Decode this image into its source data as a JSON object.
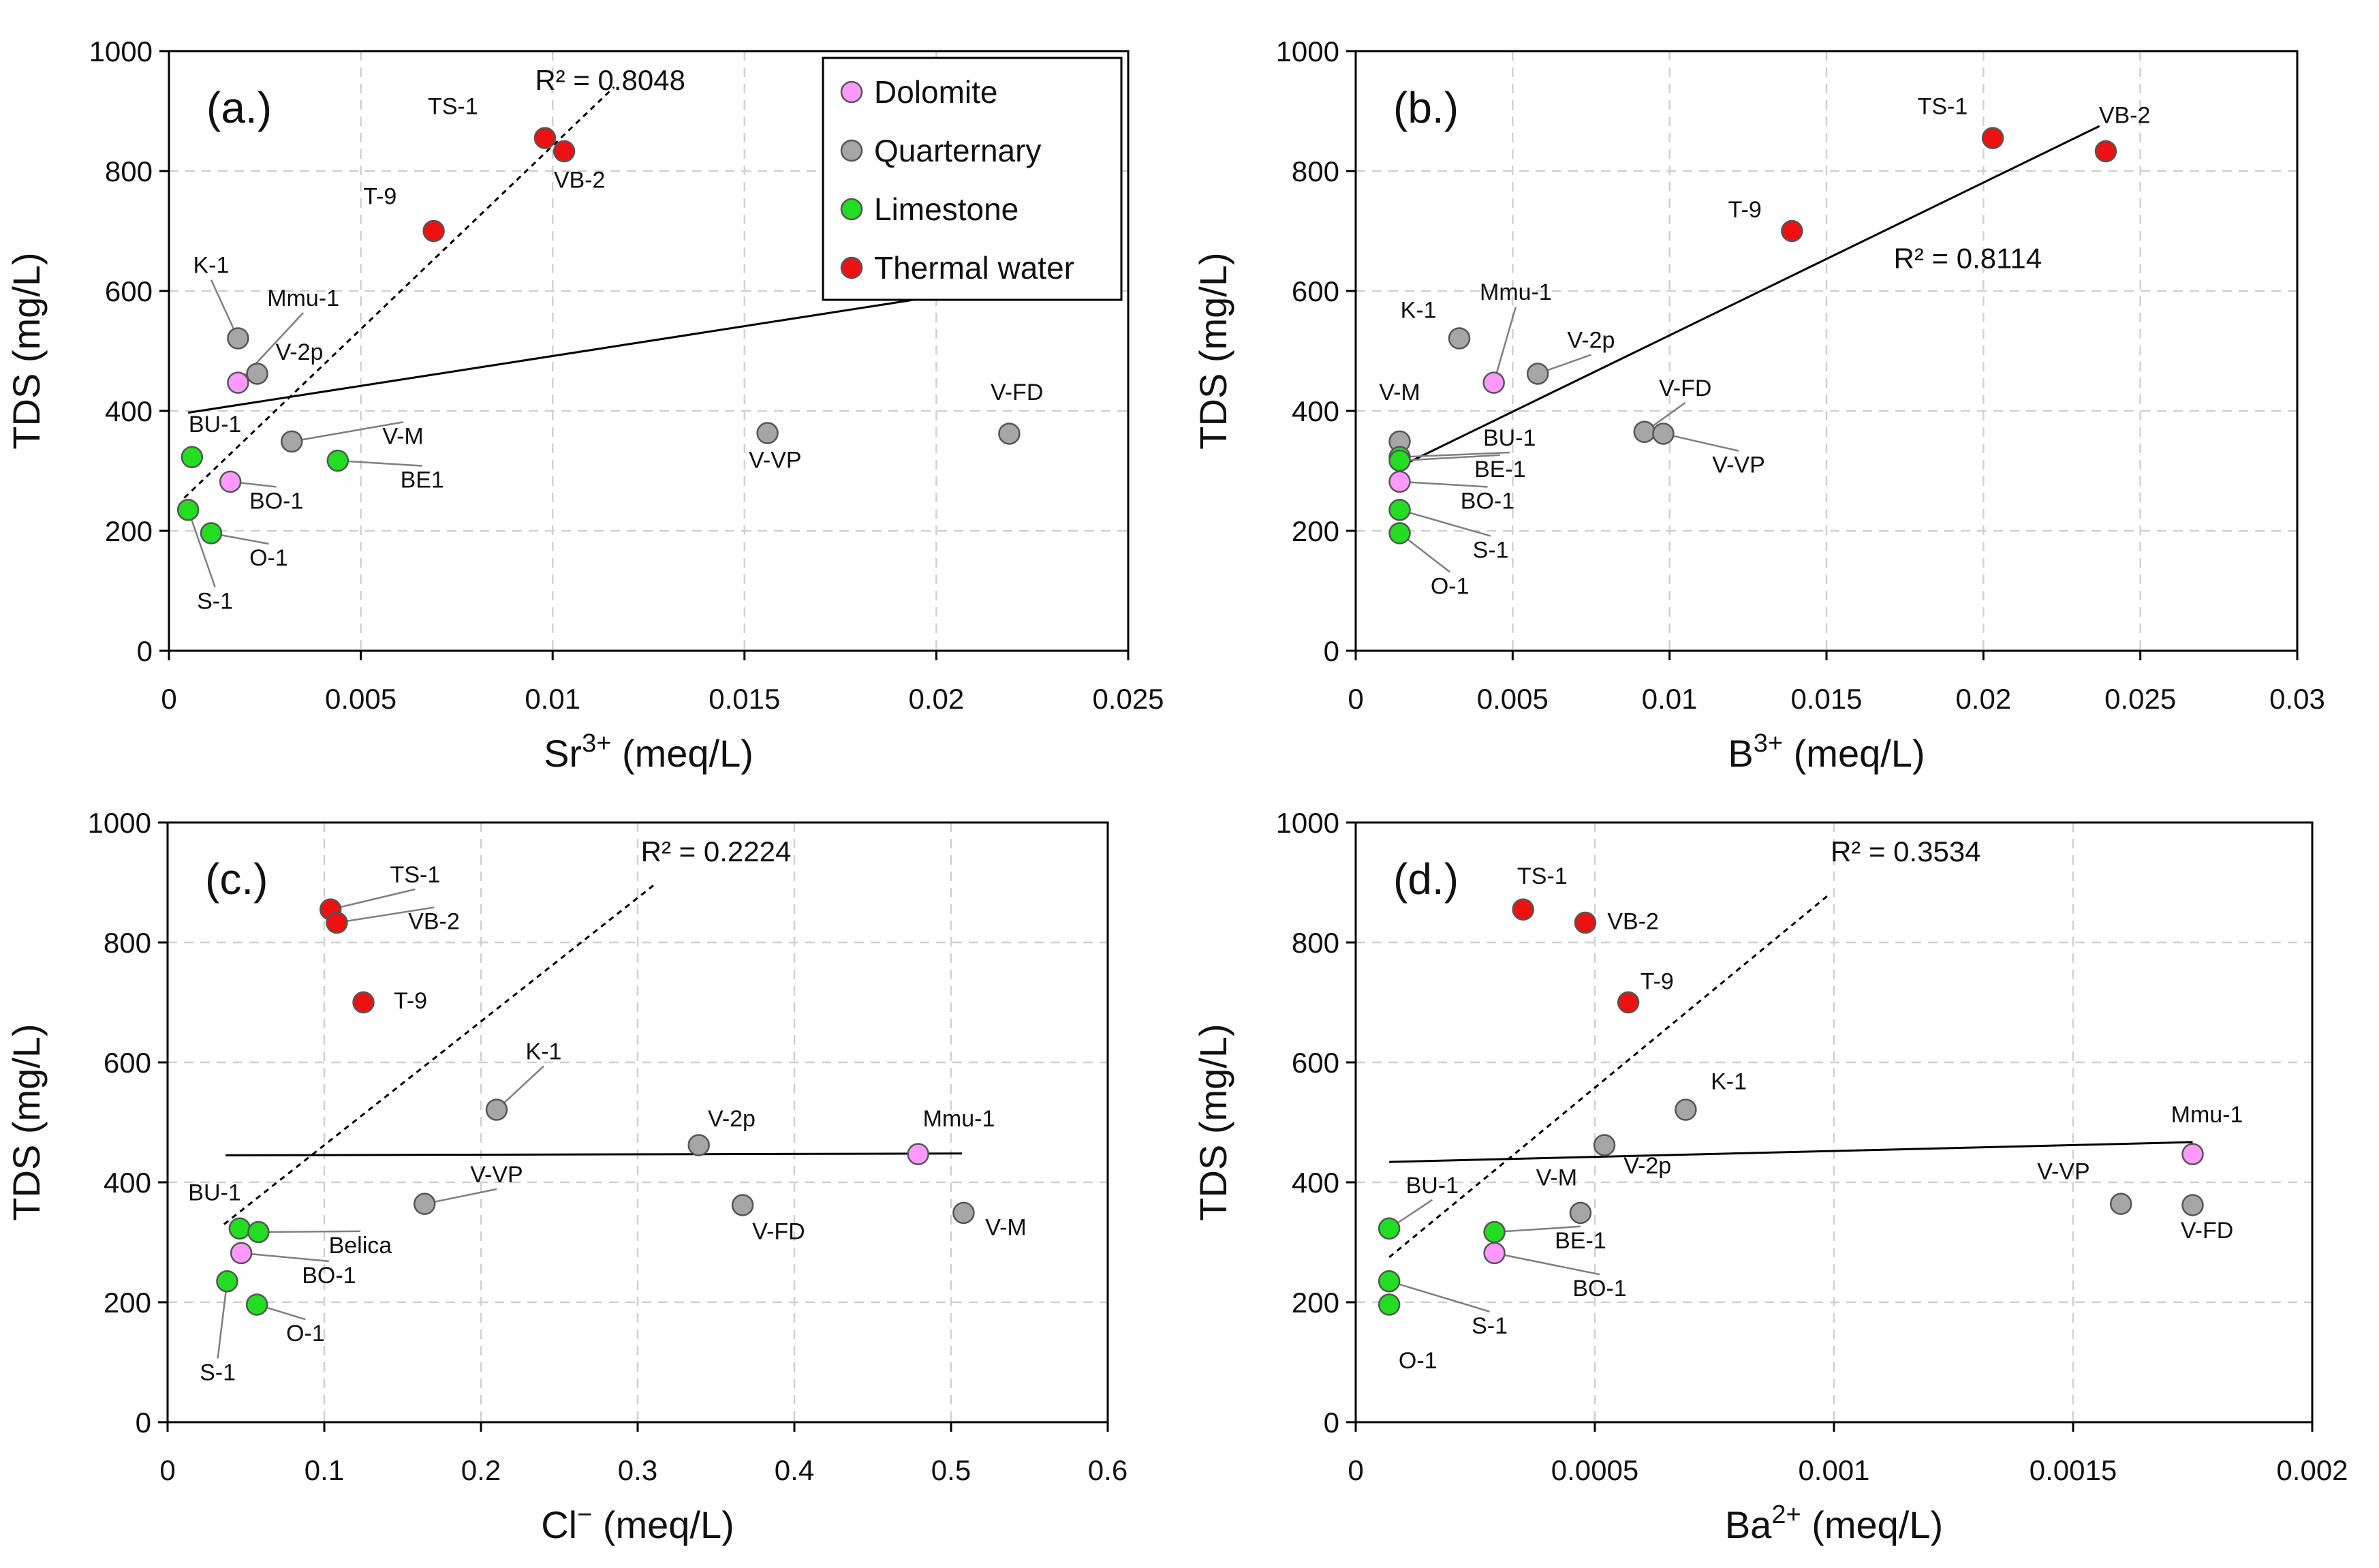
{
  "colors": {
    "Dolomite": "#ff99ff",
    "Quarternary": "#a6a6a6",
    "Limestone": "#22dd22",
    "Thermal water": "#ee1111",
    "grid": "#d0d0d0",
    "line": "#000000",
    "leader": "#7f7f7f"
  },
  "legend": {
    "entries": [
      {
        "name": "Dolomite",
        "label": "Dolomite"
      },
      {
        "name": "Quarternary",
        "label": "Quarternary"
      },
      {
        "name": "Limestone",
        "label": "Limestone"
      },
      {
        "name": "Thermal water",
        "label": "Thermal water"
      }
    ]
  },
  "chart_data": [
    {
      "type": "scatter",
      "panel_label": "(a.)",
      "xlabel": {
        "base": "Sr",
        "sup": "3+",
        "unit": " (meq/L)"
      },
      "ylabel": "TDS (mg/L)",
      "xlim": [
        0,
        0.025
      ],
      "ylim": [
        0,
        1000
      ],
      "xticks": [
        0,
        0.005,
        0.01,
        0.015,
        0.02,
        0.025
      ],
      "xtick_labels": [
        "0",
        "0.005",
        "0.01",
        "0.015",
        "0.02",
        "0.025"
      ],
      "yticks": [
        0,
        200,
        400,
        600,
        800,
        1000
      ],
      "ytick_labels": [
        "0",
        "200",
        "400",
        "600",
        "800",
        "1000"
      ],
      "r2_text": "R² = 0.8048",
      "r2_pos": [
        0.0115,
        935
      ],
      "solid_line": {
        "x": [
          0.0005,
          0.0221
        ],
        "y": [
          397,
          612
        ]
      },
      "dashed_line": {
        "x": [
          0.0004,
          0.0116
        ],
        "y": [
          255,
          940
        ]
      },
      "points": [
        {
          "id": "TS-1",
          "group": "Thermal water",
          "x": 0.0098,
          "y": 855,
          "label_pos": [
            0.0074,
            895
          ]
        },
        {
          "id": "VB-2",
          "group": "Thermal water",
          "x": 0.0103,
          "y": 833,
          "label_pos": [
            0.0107,
            772
          ]
        },
        {
          "id": "T-9",
          "group": "Thermal water",
          "x": 0.0069,
          "y": 700,
          "label_pos": [
            0.0055,
            745
          ]
        },
        {
          "id": "K-1",
          "group": "Quarternary",
          "x": 0.0018,
          "y": 521,
          "label_pos": [
            0.0011,
            630
          ],
          "leader": true
        },
        {
          "id": "Mmu-1",
          "group": "Dolomite",
          "x": 0.0018,
          "y": 447,
          "label_pos": [
            0.0035,
            575
          ],
          "leader": true
        },
        {
          "id": "V-2p",
          "group": "Quarternary",
          "x": 0.0023,
          "y": 462,
          "label_pos": [
            0.0034,
            485
          ]
        },
        {
          "id": "BU-1",
          "group": "Limestone",
          "x": 0.0006,
          "y": 323,
          "label_pos": [
            0.0012,
            365
          ]
        },
        {
          "id": "V-M",
          "group": "Quarternary",
          "x": 0.0032,
          "y": 349,
          "label_pos": [
            0.0061,
            345
          ],
          "leader": true
        },
        {
          "id": "BE1",
          "group": "Limestone",
          "x": 0.0044,
          "y": 317,
          "label_pos": [
            0.0066,
            272
          ],
          "leader": true
        },
        {
          "id": "BO-1",
          "group": "Dolomite",
          "x": 0.0016,
          "y": 282,
          "label_pos": [
            0.0028,
            237
          ],
          "leader": true
        },
        {
          "id": "S-1",
          "group": "Limestone",
          "x": 0.0005,
          "y": 235,
          "label_pos": [
            0.0012,
            70
          ],
          "leader": true
        },
        {
          "id": "O-1",
          "group": "Limestone",
          "x": 0.0011,
          "y": 196,
          "label_pos": [
            0.0026,
            142
          ],
          "leader": true
        },
        {
          "id": "V-VP",
          "group": "Quarternary",
          "x": 0.0156,
          "y": 363,
          "label_pos": [
            0.0158,
            305
          ]
        },
        {
          "id": "V-FD",
          "group": "Quarternary",
          "x": 0.0219,
          "y": 362,
          "label_pos": [
            0.0221,
            418
          ]
        }
      ]
    },
    {
      "type": "scatter",
      "panel_label": "(b.)",
      "xlabel": {
        "base": "B",
        "sup": "3+",
        "unit": " (meq/L)"
      },
      "ylabel": "TDS (mg/L)",
      "xlim": [
        0,
        0.03
      ],
      "ylim": [
        0,
        1000
      ],
      "xticks": [
        0,
        0.005,
        0.01,
        0.015,
        0.02,
        0.025,
        0.03
      ],
      "xtick_labels": [
        "0",
        "0.005",
        "0.01",
        "0.015",
        "0.02",
        "0.025",
        "0.03"
      ],
      "yticks": [
        0,
        200,
        400,
        600,
        800,
        1000
      ],
      "ytick_labels": [
        "0",
        "200",
        "400",
        "600",
        "800",
        "1000"
      ],
      "r2_text": "R² = 0.8114",
      "r2_pos": [
        0.0195,
        638
      ],
      "solid_line": {
        "x": [
          0.0014,
          0.0237
        ],
        "y": [
          307,
          875
        ]
      },
      "dashed_line": null,
      "points": [
        {
          "id": "TS-1",
          "group": "Thermal water",
          "x": 0.0203,
          "y": 855,
          "label_pos": [
            0.0187,
            895
          ]
        },
        {
          "id": "VB-2",
          "group": "Thermal water",
          "x": 0.0239,
          "y": 833,
          "label_pos": [
            0.0245,
            880
          ]
        },
        {
          "id": "T-9",
          "group": "Thermal water",
          "x": 0.0139,
          "y": 700,
          "label_pos": [
            0.0124,
            723
          ]
        },
        {
          "id": "Mmu-1",
          "group": "Dolomite",
          "x": 0.0044,
          "y": 447,
          "label_pos": [
            0.0051,
            585
          ],
          "leader": true
        },
        {
          "id": "K-1",
          "group": "Quarternary",
          "x": 0.0033,
          "y": 521,
          "label_pos": [
            0.002,
            555
          ]
        },
        {
          "id": "V-2p",
          "group": "Quarternary",
          "x": 0.0058,
          "y": 462,
          "label_pos": [
            0.0075,
            505
          ],
          "leader": true
        },
        {
          "id": "V-M",
          "group": "Quarternary",
          "x": 0.0014,
          "y": 349,
          "label_pos": [
            0.0014,
            418
          ]
        },
        {
          "id": "V-FD",
          "group": "Quarternary",
          "x": 0.0092,
          "y": 365,
          "label_pos": [
            0.0105,
            425
          ],
          "leader": true
        },
        {
          "id": "V-VP",
          "group": "Quarternary",
          "x": 0.0098,
          "y": 362,
          "label_pos": [
            0.0122,
            297
          ],
          "leader": true
        },
        {
          "id": "BU-1",
          "group": "Limestone",
          "x": 0.0014,
          "y": 323,
          "label_pos": [
            0.0049,
            342
          ],
          "leader": true
        },
        {
          "id": "BE-1",
          "group": "Limestone",
          "x": 0.0014,
          "y": 317,
          "label_pos": [
            0.0046,
            290
          ],
          "leader": true
        },
        {
          "id": "BO-1",
          "group": "Dolomite",
          "x": 0.0014,
          "y": 282,
          "label_pos": [
            0.0042,
            237
          ],
          "leader": true
        },
        {
          "id": "S-1",
          "group": "Limestone",
          "x": 0.0014,
          "y": 235,
          "label_pos": [
            0.0043,
            155
          ],
          "leader": true
        },
        {
          "id": "O-1",
          "group": "Limestone",
          "x": 0.0014,
          "y": 196,
          "label_pos": [
            0.003,
            95
          ],
          "leader": true
        }
      ]
    },
    {
      "type": "scatter",
      "panel_label": "(c.)",
      "xlabel": {
        "base": "Cl",
        "sup": "−",
        "unit": " (meq/L)"
      },
      "ylabel": "TDS (mg/L)",
      "xlim": [
        0,
        0.6
      ],
      "ylim": [
        0,
        1000
      ],
      "xticks": [
        0,
        0.1,
        0.2,
        0.3,
        0.4,
        0.5,
        0.6
      ],
      "xtick_labels": [
        "0",
        "0.1",
        "0.2",
        "0.3",
        "0.4",
        "0.5",
        "0.6"
      ],
      "yticks": [
        0,
        200,
        400,
        600,
        800,
        1000
      ],
      "ytick_labels": [
        "0",
        "200",
        "400",
        "600",
        "800",
        "1000"
      ],
      "r2_text": "R² = 0.2224",
      "r2_pos": [
        0.35,
        935
      ],
      "solid_line": {
        "x": [
          0.037,
          0.507
        ],
        "y": [
          445,
          448
        ]
      },
      "dashed_line": {
        "x": [
          0.036,
          0.31
        ],
        "y": [
          330,
          895
        ]
      },
      "points": [
        {
          "id": "TS-1",
          "group": "Thermal water",
          "x": 0.104,
          "y": 855,
          "label_pos": [
            0.158,
            900
          ],
          "leader": true
        },
        {
          "id": "VB-2",
          "group": "Thermal water",
          "x": 0.108,
          "y": 833,
          "label_pos": [
            0.17,
            822
          ],
          "leader": true
        },
        {
          "id": "T-9",
          "group": "Thermal water",
          "x": 0.125,
          "y": 700,
          "label_pos": [
            0.155,
            690
          ]
        },
        {
          "id": "K-1",
          "group": "Quarternary",
          "x": 0.21,
          "y": 521,
          "label_pos": [
            0.24,
            605
          ],
          "leader": true
        },
        {
          "id": "V-2p",
          "group": "Quarternary",
          "x": 0.339,
          "y": 462,
          "label_pos": [
            0.36,
            493
          ]
        },
        {
          "id": "Mmu-1",
          "group": "Dolomite",
          "x": 0.479,
          "y": 447,
          "label_pos": [
            0.505,
            493
          ]
        },
        {
          "id": "V-VP",
          "group": "Quarternary",
          "x": 0.164,
          "y": 364,
          "label_pos": [
            0.21,
            400
          ],
          "leader": true
        },
        {
          "id": "V-FD",
          "group": "Quarternary",
          "x": 0.367,
          "y": 362,
          "label_pos": [
            0.39,
            305
          ]
        },
        {
          "id": "V-M",
          "group": "Quarternary",
          "x": 0.508,
          "y": 349,
          "label_pos": [
            0.535,
            312
          ]
        },
        {
          "id": "BU-1",
          "group": "Limestone",
          "x": 0.046,
          "y": 323,
          "label_pos": [
            0.03,
            370
          ]
        },
        {
          "id": "Belica",
          "group": "Limestone",
          "x": 0.058,
          "y": 317,
          "label_pos": [
            0.123,
            282
          ],
          "leader": true
        },
        {
          "id": "BO-1",
          "group": "Dolomite",
          "x": 0.047,
          "y": 282,
          "label_pos": [
            0.103,
            232
          ],
          "leader": true
        },
        {
          "id": "S-1",
          "group": "Limestone",
          "x": 0.038,
          "y": 235,
          "label_pos": [
            0.032,
            70
          ],
          "leader": true
        },
        {
          "id": "O-1",
          "group": "Limestone",
          "x": 0.057,
          "y": 196,
          "label_pos": [
            0.088,
            135
          ],
          "leader": true
        }
      ]
    },
    {
      "type": "scatter",
      "panel_label": "(d.)",
      "xlabel": {
        "base": "Ba",
        "sup": "2+",
        "unit": " (meq/L)"
      },
      "ylabel": "TDS (mg/L)",
      "xlim": [
        0,
        0.002
      ],
      "ylim": [
        0,
        1000
      ],
      "xticks": [
        0,
        0.0005,
        0.001,
        0.0015,
        0.002
      ],
      "xtick_labels": [
        "0",
        "0.0005",
        "0.001",
        "0.0015",
        "0.002"
      ],
      "yticks": [
        0,
        200,
        400,
        600,
        800,
        1000
      ],
      "ytick_labels": [
        "0",
        "200",
        "400",
        "600",
        "800",
        "1000"
      ],
      "r2_text": "R² = 0.3534",
      "r2_pos": [
        0.00115,
        935
      ],
      "solid_line": {
        "x": [
          7e-05,
          0.00175
        ],
        "y": [
          434,
          467
        ]
      },
      "dashed_line": {
        "x": [
          7e-05,
          0.00099
        ],
        "y": [
          275,
          880
        ]
      },
      "points": [
        {
          "id": "TS-1",
          "group": "Thermal water",
          "x": 0.00035,
          "y": 855,
          "label_pos": [
            0.00039,
            898
          ]
        },
        {
          "id": "VB-2",
          "group": "Thermal water",
          "x": 0.00048,
          "y": 833,
          "label_pos": [
            0.00058,
            822
          ]
        },
        {
          "id": "T-9",
          "group": "Thermal water",
          "x": 0.00057,
          "y": 700,
          "label_pos": [
            0.00063,
            722
          ]
        },
        {
          "id": "K-1",
          "group": "Quarternary",
          "x": 0.00069,
          "y": 521,
          "label_pos": [
            0.00078,
            555
          ]
        },
        {
          "id": "V-2p",
          "group": "Quarternary",
          "x": 0.00052,
          "y": 462,
          "label_pos": [
            0.00061,
            415
          ]
        },
        {
          "id": "V-M",
          "group": "Quarternary",
          "x": 0.00047,
          "y": 349,
          "label_pos": [
            0.00042,
            395
          ]
        },
        {
          "id": "BE-1",
          "group": "Limestone",
          "x": 0.00029,
          "y": 317,
          "label_pos": [
            0.00047,
            290
          ],
          "leader": true
        },
        {
          "id": "BO-1",
          "group": "Dolomite",
          "x": 0.00029,
          "y": 282,
          "label_pos": [
            0.00051,
            210
          ],
          "leader": true
        },
        {
          "id": "BU-1",
          "group": "Limestone",
          "x": 7e-05,
          "y": 323,
          "label_pos": [
            0.00016,
            382
          ],
          "leader": true
        },
        {
          "id": "S-1",
          "group": "Limestone",
          "x": 7e-05,
          "y": 235,
          "label_pos": [
            0.00028,
            148
          ],
          "leader": true
        },
        {
          "id": "O-1",
          "group": "Limestone",
          "x": 7e-05,
          "y": 196,
          "label_pos": [
            0.00013,
            90
          ]
        },
        {
          "id": "Mmu-1",
          "group": "Dolomite",
          "x": 0.00175,
          "y": 447,
          "label_pos": [
            0.00178,
            500
          ]
        },
        {
          "id": "V-VP",
          "group": "Quarternary",
          "x": 0.0016,
          "y": 364,
          "label_pos": [
            0.00148,
            405
          ]
        },
        {
          "id": "V-FD",
          "group": "Quarternary",
          "x": 0.00175,
          "y": 362,
          "label_pos": [
            0.00178,
            307
          ]
        }
      ]
    }
  ]
}
